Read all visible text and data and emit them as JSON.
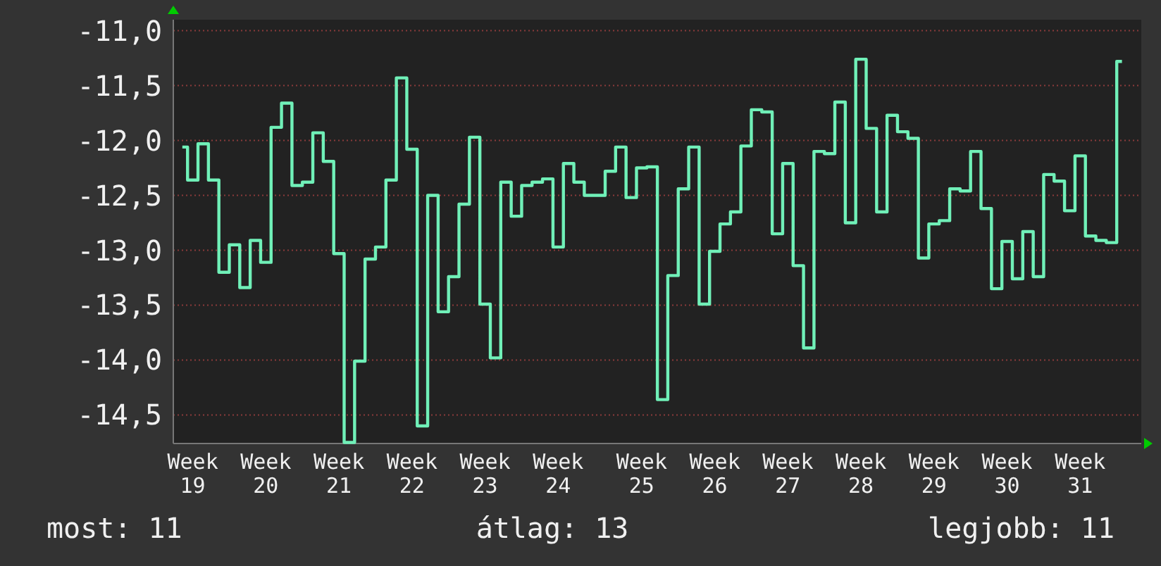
{
  "chart_data": {
    "type": "step",
    "categories": [
      null,
      "Week 19",
      null,
      null,
      null,
      null,
      null,
      null,
      "Week 20",
      null,
      null,
      null,
      null,
      null,
      null,
      "Week 21",
      null,
      null,
      null,
      null,
      null,
      null,
      "Week 22",
      null,
      null,
      null,
      null,
      null,
      null,
      "Week 23",
      null,
      null,
      null,
      null,
      null,
      null,
      "Week 24",
      null,
      null,
      null,
      null,
      null,
      null,
      null,
      "Week 25",
      null,
      null,
      null,
      null,
      null,
      null,
      "Week 26",
      null,
      null,
      null,
      null,
      null,
      null,
      "Week 27",
      null,
      null,
      null,
      null,
      null,
      null,
      "Week 28",
      null,
      null,
      null,
      null,
      null,
      null,
      "Week 29",
      null,
      null,
      null,
      null,
      null,
      null,
      "Week 30",
      null,
      null,
      null,
      null,
      null,
      null,
      "Week 31",
      null,
      null,
      null,
      null
    ],
    "series": [
      {
        "color": "#70f0b8",
        "values": [
          -12.06,
          -12.36,
          -12.03,
          -12.36,
          -13.2,
          -12.95,
          -13.34,
          -12.91,
          -13.11,
          -11.88,
          -11.66,
          -12.41,
          -12.38,
          -11.93,
          -12.19,
          -13.03,
          -14.75,
          -14.01,
          -13.08,
          -12.97,
          -12.36,
          -11.43,
          -12.08,
          -14.6,
          -12.5,
          -13.56,
          -13.24,
          -12.58,
          -11.97,
          -13.49,
          -13.98,
          -12.38,
          -12.69,
          -12.41,
          -12.38,
          -12.35,
          -12.97,
          -12.21,
          -12.38,
          -12.5,
          -12.5,
          -12.28,
          -12.06,
          -12.52,
          -12.25,
          -12.24,
          -14.36,
          -13.23,
          -12.44,
          -12.06,
          -13.49,
          -13.01,
          -12.76,
          -12.65,
          -12.05,
          -11.72,
          -11.74,
          -12.85,
          -12.21,
          -13.14,
          -13.89,
          -12.1,
          -12.12,
          -11.65,
          -12.75,
          -11.26,
          -11.89,
          -12.65,
          -11.77,
          -11.92,
          -11.98,
          -13.07,
          -12.76,
          -12.73,
          -12.44,
          -12.46,
          -12.1,
          -12.62,
          -13.35,
          -12.92,
          -13.26,
          -12.83,
          -13.24,
          -12.31,
          -12.37,
          -12.64,
          -12.14,
          -12.87,
          -12.91,
          -12.93,
          -11.28
        ]
      }
    ],
    "ylim": [
      -14.76,
      -10.9
    ],
    "yticks": [
      {
        "value": -14.5,
        "label": "-14,5"
      },
      {
        "value": -14,
        "label": "-14,0"
      },
      {
        "value": -13.5,
        "label": "-13,5"
      },
      {
        "value": -13,
        "label": "-13,0"
      },
      {
        "value": -12.5,
        "label": "-12,5"
      },
      {
        "value": -12,
        "label": "-12,0"
      },
      {
        "value": -11.5,
        "label": "-11,5"
      },
      {
        "value": -11,
        "label": "-11,0"
      }
    ],
    "grid": "y",
    "annotations": [
      "most: 11",
      "átlag: 13",
      "legjobb: 11"
    ]
  }
}
